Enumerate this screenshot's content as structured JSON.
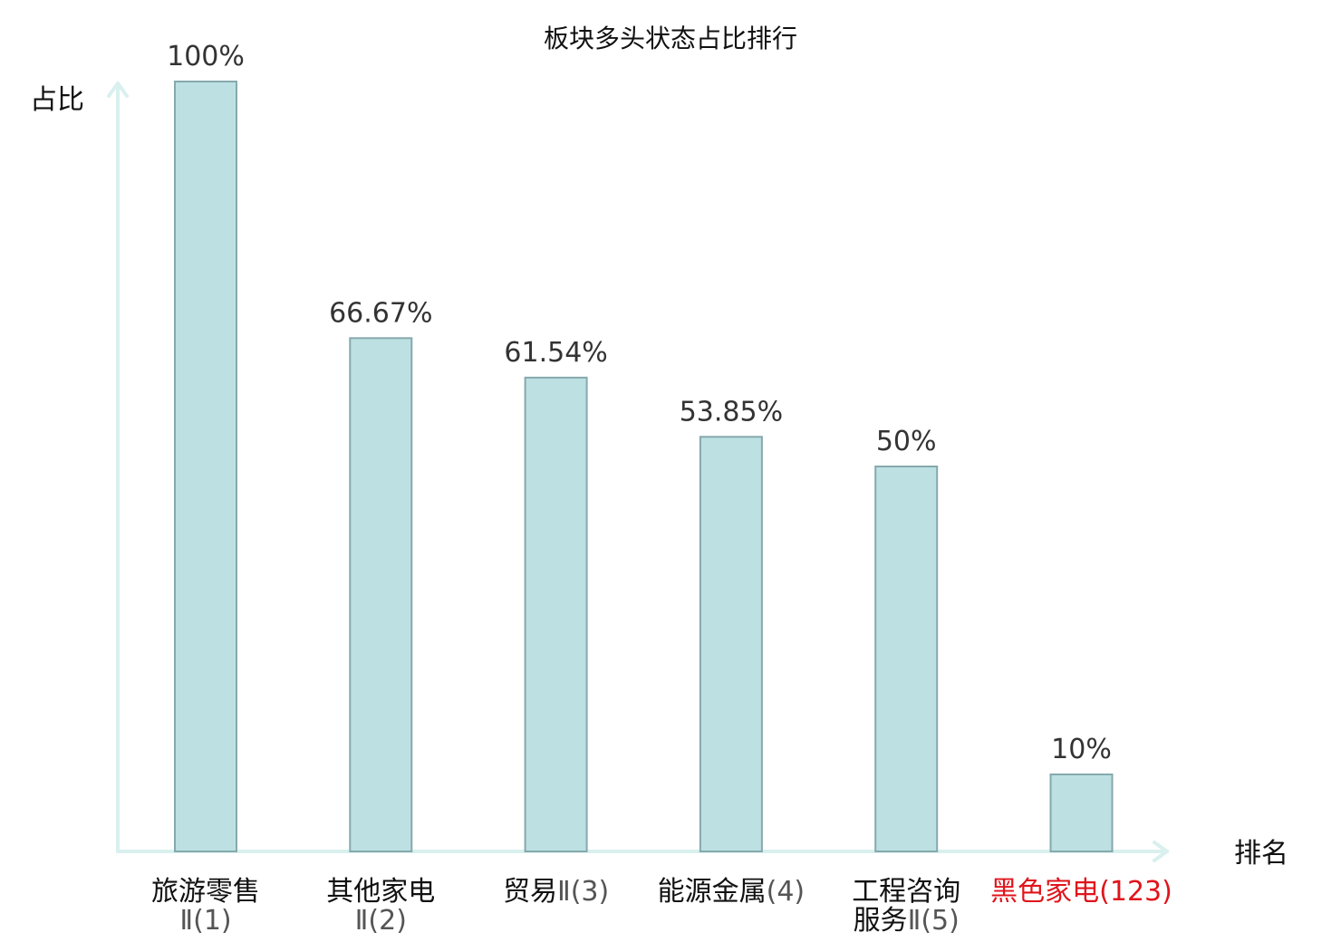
{
  "chart_data": {
    "type": "bar",
    "title": "板块多头状态占比排行",
    "ylabel": "占比",
    "xlabel": "排名",
    "ylim": [
      0,
      100
    ],
    "grid": false,
    "categories": [
      {
        "lines": [
          [
            "旅游零售",
            ""
          ],
          [
            "",
            "Ⅱ(1)"
          ]
        ],
        "highlight": false
      },
      {
        "lines": [
          [
            "其他家电",
            ""
          ],
          [
            "",
            "Ⅱ(2)"
          ]
        ],
        "highlight": false
      },
      {
        "lines": [
          [
            "贸易",
            "Ⅱ(3)"
          ]
        ],
        "highlight": false
      },
      {
        "lines": [
          [
            "能源金属",
            "(4)"
          ]
        ],
        "highlight": false
      },
      {
        "lines": [
          [
            "工程咨询",
            ""
          ],
          [
            "服务",
            "Ⅱ(5)"
          ]
        ],
        "highlight": false
      },
      {
        "lines": [
          [
            "黑色家电",
            "(123)"
          ]
        ],
        "highlight": true
      }
    ],
    "values": [
      100,
      66.67,
      61.54,
      53.85,
      50,
      10
    ],
    "value_labels": [
      "100%",
      "66.67%",
      "61.54%",
      "53.85%",
      "50%",
      "10%"
    ],
    "colors": {
      "bar_fill": "#bde0e3",
      "bar_stroke": "#86a9ad",
      "axis": "#d9f0ee",
      "highlight": "#e0141c"
    }
  }
}
